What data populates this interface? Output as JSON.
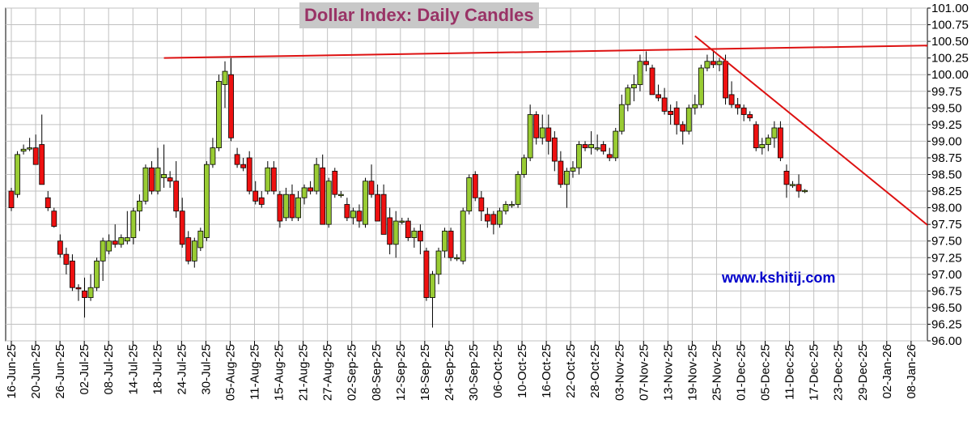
{
  "colors": {
    "up": "#99cc33",
    "down": "#ee1111",
    "trendline": "#dd1111",
    "title_text": "#993366",
    "title_bg": "#c8c8c8",
    "watermark": "#0000cc",
    "grid": "#c0c0c0"
  },
  "watermark": "www.kshitij.com",
  "chart_data": {
    "type": "candlestick",
    "title": "Dollar Index: Daily Candles",
    "y_axis": {
      "position": "right",
      "ylim": [
        96.0,
        101.0
      ],
      "ticks": [
        "96.00",
        "96.25",
        "96.50",
        "96.75",
        "97.00",
        "97.25",
        "97.50",
        "97.75",
        "98.00",
        "98.25",
        "98.50",
        "98.75",
        "99.00",
        "99.25",
        "99.50",
        "99.75",
        "100.00",
        "100.25",
        "100.50",
        "100.75",
        "101.00"
      ]
    },
    "x_axis": {
      "ticks": [
        "16-Jun-25",
        "20-Jun-25",
        "26-Jun-25",
        "02-Jul-25",
        "08-Jul-25",
        "14-Jul-25",
        "18-Jul-25",
        "24-Jul-25",
        "30-Jul-25",
        "05-Aug-25",
        "11-Aug-25",
        "15-Aug-25",
        "21-Aug-25",
        "27-Aug-25",
        "02-Sep-25",
        "08-Sep-25",
        "12-Sep-25",
        "18-Sep-25",
        "24-Sep-25",
        "30-Sep-25",
        "06-Oct-25",
        "10-Oct-25",
        "16-Oct-25",
        "22-Oct-25",
        "28-Oct-25",
        "03-Nov-25",
        "07-Nov-25",
        "13-Nov-25",
        "19-Nov-25",
        "25-Nov-25",
        "01-Dec-25",
        "05-Dec-25",
        "11-Dec-25",
        "17-Dec-25",
        "23-Dec-25",
        "29-Dec-25",
        "02-Jan-26",
        "08-Jan-26"
      ],
      "ticks_per_label_interval_days": 4
    },
    "grid": true,
    "candles": [
      {
        "d": 0,
        "o": 98.25,
        "h": 98.3,
        "l": 97.95,
        "c": 98.0
      },
      {
        "d": 1,
        "o": 98.2,
        "h": 98.85,
        "l": 98.15,
        "c": 98.8
      },
      {
        "d": 2,
        "o": 98.85,
        "h": 98.95,
        "l": 98.8,
        "c": 98.88
      },
      {
        "d": 3,
        "o": 98.9,
        "h": 99.05,
        "l": 98.85,
        "c": 98.9
      },
      {
        "d": 4,
        "o": 98.9,
        "h": 99.1,
        "l": 98.7,
        "c": 98.65
      },
      {
        "d": 5,
        "o": 98.95,
        "h": 99.4,
        "l": 98.35,
        "c": 98.35
      },
      {
        "d": 6,
        "o": 98.15,
        "h": 98.25,
        "l": 97.95,
        "c": 98.0
      },
      {
        "d": 7,
        "o": 97.95,
        "h": 98.0,
        "l": 97.7,
        "c": 97.72
      },
      {
        "d": 8,
        "o": 97.5,
        "h": 97.6,
        "l": 97.25,
        "c": 97.3
      },
      {
        "d": 9,
        "o": 97.3,
        "h": 97.4,
        "l": 97.0,
        "c": 97.15
      },
      {
        "d": 10,
        "o": 97.2,
        "h": 97.3,
        "l": 96.75,
        "c": 96.8
      },
      {
        "d": 11,
        "o": 96.8,
        "h": 96.85,
        "l": 96.6,
        "c": 96.78
      },
      {
        "d": 12,
        "o": 96.75,
        "h": 96.95,
        "l": 96.35,
        "c": 96.65
      },
      {
        "d": 13,
        "o": 96.65,
        "h": 97.0,
        "l": 96.6,
        "c": 96.8
      },
      {
        "d": 14,
        "o": 96.8,
        "h": 97.25,
        "l": 96.75,
        "c": 97.2
      },
      {
        "d": 15,
        "o": 97.2,
        "h": 97.55,
        "l": 96.9,
        "c": 97.5
      },
      {
        "d": 16,
        "o": 97.35,
        "h": 97.6,
        "l": 97.3,
        "c": 97.5
      },
      {
        "d": 17,
        "o": 97.5,
        "h": 97.75,
        "l": 97.4,
        "c": 97.45
      },
      {
        "d": 18,
        "o": 97.45,
        "h": 97.6,
        "l": 97.4,
        "c": 97.55
      },
      {
        "d": 19,
        "o": 97.5,
        "h": 97.95,
        "l": 97.45,
        "c": 97.55
      },
      {
        "d": 20,
        "o": 97.55,
        "h": 98.0,
        "l": 97.45,
        "c": 97.95
      },
      {
        "d": 21,
        "o": 97.95,
        "h": 98.2,
        "l": 97.65,
        "c": 98.1
      },
      {
        "d": 22,
        "o": 98.1,
        "h": 98.65,
        "l": 98.05,
        "c": 98.6
      },
      {
        "d": 23,
        "o": 98.6,
        "h": 98.7,
        "l": 98.2,
        "c": 98.25
      },
      {
        "d": 24,
        "o": 98.25,
        "h": 98.9,
        "l": 98.2,
        "c": 98.6
      },
      {
        "d": 25,
        "o": 98.45,
        "h": 98.95,
        "l": 98.3,
        "c": 98.5
      },
      {
        "d": 26,
        "o": 98.45,
        "h": 98.55,
        "l": 98.3,
        "c": 98.4
      },
      {
        "d": 27,
        "o": 98.4,
        "h": 98.7,
        "l": 97.85,
        "c": 97.95
      },
      {
        "d": 28,
        "o": 97.95,
        "h": 98.15,
        "l": 97.4,
        "c": 97.45
      },
      {
        "d": 29,
        "o": 97.55,
        "h": 97.65,
        "l": 97.15,
        "c": 97.2
      },
      {
        "d": 30,
        "o": 97.2,
        "h": 97.55,
        "l": 97.1,
        "c": 97.5
      },
      {
        "d": 31,
        "o": 97.4,
        "h": 97.7,
        "l": 97.35,
        "c": 97.65
      },
      {
        "d": 32,
        "o": 97.55,
        "h": 98.7,
        "l": 97.5,
        "c": 98.65
      },
      {
        "d": 33,
        "o": 98.65,
        "h": 99.05,
        "l": 98.6,
        "c": 98.9
      },
      {
        "d": 34,
        "o": 98.9,
        "h": 100.0,
        "l": 98.85,
        "c": 99.9
      },
      {
        "d": 35,
        "o": 99.85,
        "h": 100.2,
        "l": 99.5,
        "c": 100.05
      },
      {
        "d": 36,
        "o": 100.0,
        "h": 100.25,
        "l": 99.0,
        "c": 99.05
      },
      {
        "d": 37,
        "o": 98.8,
        "h": 98.9,
        "l": 98.6,
        "c": 98.65
      },
      {
        "d": 38,
        "o": 98.65,
        "h": 98.75,
        "l": 98.55,
        "c": 98.6
      },
      {
        "d": 39,
        "o": 98.75,
        "h": 98.85,
        "l": 98.2,
        "c": 98.25
      },
      {
        "d": 40,
        "o": 98.25,
        "h": 98.4,
        "l": 98.05,
        "c": 98.1
      },
      {
        "d": 41,
        "o": 98.15,
        "h": 98.25,
        "l": 98.0,
        "c": 98.05
      },
      {
        "d": 42,
        "o": 98.25,
        "h": 98.7,
        "l": 98.2,
        "c": 98.6
      },
      {
        "d": 43,
        "o": 98.6,
        "h": 98.7,
        "l": 98.2,
        "c": 98.25
      },
      {
        "d": 44,
        "o": 98.2,
        "h": 98.25,
        "l": 97.7,
        "c": 97.8
      },
      {
        "d": 45,
        "o": 97.85,
        "h": 98.3,
        "l": 97.8,
        "c": 98.2
      },
      {
        "d": 46,
        "o": 98.2,
        "h": 98.35,
        "l": 97.8,
        "c": 97.85
      },
      {
        "d": 47,
        "o": 97.85,
        "h": 98.25,
        "l": 97.8,
        "c": 98.15
      },
      {
        "d": 48,
        "o": 98.15,
        "h": 98.35,
        "l": 98.05,
        "c": 98.3
      },
      {
        "d": 49,
        "o": 98.3,
        "h": 98.4,
        "l": 98.2,
        "c": 98.25
      },
      {
        "d": 50,
        "o": 98.25,
        "h": 98.75,
        "l": 98.2,
        "c": 98.65
      },
      {
        "d": 51,
        "o": 98.6,
        "h": 98.8,
        "l": 97.75,
        "c": 97.75
      },
      {
        "d": 52,
        "o": 97.75,
        "h": 98.45,
        "l": 97.7,
        "c": 98.4
      },
      {
        "d": 53,
        "o": 98.55,
        "h": 98.6,
        "l": 98.15,
        "c": 98.2
      },
      {
        "d": 54,
        "o": 98.2,
        "h": 98.25,
        "l": 98.15,
        "c": 98.2
      },
      {
        "d": 55,
        "o": 98.05,
        "h": 98.15,
        "l": 97.8,
        "c": 97.85
      },
      {
        "d": 56,
        "o": 97.85,
        "h": 98.0,
        "l": 97.75,
        "c": 97.95
      },
      {
        "d": 57,
        "o": 97.95,
        "h": 98.05,
        "l": 97.7,
        "c": 97.8
      },
      {
        "d": 58,
        "o": 97.75,
        "h": 98.45,
        "l": 97.7,
        "c": 98.4
      },
      {
        "d": 59,
        "o": 98.4,
        "h": 98.65,
        "l": 98.15,
        "c": 98.2
      },
      {
        "d": 60,
        "o": 98.2,
        "h": 98.35,
        "l": 97.8,
        "c": 97.8
      },
      {
        "d": 61,
        "o": 98.2,
        "h": 98.35,
        "l": 97.6,
        "c": 97.6
      },
      {
        "d": 62,
        "o": 97.85,
        "h": 98.0,
        "l": 97.3,
        "c": 97.45
      },
      {
        "d": 63,
        "o": 97.45,
        "h": 97.95,
        "l": 97.25,
        "c": 97.8
      },
      {
        "d": 64,
        "o": 97.8,
        "h": 97.85,
        "l": 97.75,
        "c": 97.8
      },
      {
        "d": 65,
        "o": 97.8,
        "h": 97.85,
        "l": 97.5,
        "c": 97.55
      },
      {
        "d": 66,
        "o": 97.55,
        "h": 97.7,
        "l": 97.4,
        "c": 97.65
      },
      {
        "d": 67,
        "o": 97.65,
        "h": 97.75,
        "l": 97.3,
        "c": 97.5
      },
      {
        "d": 68,
        "o": 97.35,
        "h": 97.4,
        "l": 96.6,
        "c": 96.65
      },
      {
        "d": 69,
        "o": 96.65,
        "h": 97.05,
        "l": 96.2,
        "c": 97.0
      },
      {
        "d": 70,
        "o": 97.0,
        "h": 97.4,
        "l": 96.85,
        "c": 97.35
      },
      {
        "d": 71,
        "o": 97.35,
        "h": 97.7,
        "l": 97.25,
        "c": 97.65
      },
      {
        "d": 72,
        "o": 97.65,
        "h": 97.7,
        "l": 97.2,
        "c": 97.25
      },
      {
        "d": 73,
        "o": 97.25,
        "h": 97.3,
        "l": 97.2,
        "c": 97.25
      },
      {
        "d": 74,
        "o": 97.2,
        "h": 98.0,
        "l": 97.15,
        "c": 97.95
      },
      {
        "d": 75,
        "o": 97.95,
        "h": 98.5,
        "l": 97.9,
        "c": 98.45
      },
      {
        "d": 76,
        "o": 98.5,
        "h": 98.55,
        "l": 98.1,
        "c": 98.15
      },
      {
        "d": 77,
        "o": 98.15,
        "h": 98.25,
        "l": 97.8,
        "c": 97.95
      },
      {
        "d": 78,
        "o": 97.9,
        "h": 98.0,
        "l": 97.7,
        "c": 97.8
      },
      {
        "d": 79,
        "o": 97.9,
        "h": 97.95,
        "l": 97.6,
        "c": 97.75
      },
      {
        "d": 80,
        "o": 97.75,
        "h": 98.0,
        "l": 97.7,
        "c": 97.95
      },
      {
        "d": 81,
        "o": 97.95,
        "h": 98.1,
        "l": 97.9,
        "c": 98.05
      },
      {
        "d": 82,
        "o": 98.05,
        "h": 98.1,
        "l": 98.0,
        "c": 98.05
      },
      {
        "d": 83,
        "o": 98.05,
        "h": 98.55,
        "l": 98.0,
        "c": 98.5
      },
      {
        "d": 84,
        "o": 98.5,
        "h": 98.8,
        "l": 98.45,
        "c": 98.75
      },
      {
        "d": 85,
        "o": 98.75,
        "h": 99.55,
        "l": 98.7,
        "c": 99.4
      },
      {
        "d": 86,
        "o": 99.4,
        "h": 99.45,
        "l": 98.95,
        "c": 99.05
      },
      {
        "d": 87,
        "o": 99.05,
        "h": 99.4,
        "l": 98.95,
        "c": 99.2
      },
      {
        "d": 88,
        "o": 99.2,
        "h": 99.4,
        "l": 98.8,
        "c": 99.0
      },
      {
        "d": 89,
        "o": 99.05,
        "h": 99.15,
        "l": 98.55,
        "c": 98.7
      },
      {
        "d": 90,
        "o": 98.7,
        "h": 98.85,
        "l": 98.3,
        "c": 98.35
      },
      {
        "d": 91,
        "o": 98.35,
        "h": 98.6,
        "l": 98.0,
        "c": 98.55
      },
      {
        "d": 92,
        "o": 98.55,
        "h": 98.7,
        "l": 98.45,
        "c": 98.6
      },
      {
        "d": 93,
        "o": 98.6,
        "h": 99.0,
        "l": 98.5,
        "c": 98.95
      },
      {
        "d": 94,
        "o": 98.95,
        "h": 99.0,
        "l": 98.85,
        "c": 98.9
      },
      {
        "d": 95,
        "o": 98.9,
        "h": 99.15,
        "l": 98.8,
        "c": 98.95
      },
      {
        "d": 96,
        "o": 98.9,
        "h": 99.1,
        "l": 98.85,
        "c": 98.9
      },
      {
        "d": 97,
        "o": 98.95,
        "h": 99.0,
        "l": 98.8,
        "c": 98.85
      },
      {
        "d": 98,
        "o": 98.8,
        "h": 98.9,
        "l": 98.7,
        "c": 98.75
      },
      {
        "d": 99,
        "o": 98.75,
        "h": 99.2,
        "l": 98.7,
        "c": 99.15
      },
      {
        "d": 100,
        "o": 99.15,
        "h": 99.7,
        "l": 99.1,
        "c": 99.55
      },
      {
        "d": 101,
        "o": 99.55,
        "h": 99.85,
        "l": 99.45,
        "c": 99.8
      },
      {
        "d": 102,
        "o": 99.8,
        "h": 100.0,
        "l": 99.6,
        "c": 99.85
      },
      {
        "d": 103,
        "o": 99.85,
        "h": 100.3,
        "l": 99.75,
        "c": 100.2
      },
      {
        "d": 104,
        "o": 100.2,
        "h": 100.35,
        "l": 100.05,
        "c": 100.15
      },
      {
        "d": 105,
        "o": 100.1,
        "h": 100.15,
        "l": 99.7,
        "c": 99.7
      },
      {
        "d": 106,
        "o": 99.7,
        "h": 99.85,
        "l": 99.6,
        "c": 99.65
      },
      {
        "d": 107,
        "o": 99.65,
        "h": 99.8,
        "l": 99.4,
        "c": 99.45
      },
      {
        "d": 108,
        "o": 99.45,
        "h": 99.55,
        "l": 99.25,
        "c": 99.4
      },
      {
        "d": 109,
        "o": 99.5,
        "h": 99.6,
        "l": 99.1,
        "c": 99.25
      },
      {
        "d": 110,
        "o": 99.25,
        "h": 99.3,
        "l": 98.95,
        "c": 99.15
      },
      {
        "d": 111,
        "o": 99.15,
        "h": 99.55,
        "l": 99.1,
        "c": 99.5
      },
      {
        "d": 112,
        "o": 99.5,
        "h": 99.7,
        "l": 99.4,
        "c": 99.55
      },
      {
        "d": 113,
        "o": 99.55,
        "h": 100.15,
        "l": 99.5,
        "c": 100.1
      },
      {
        "d": 114,
        "o": 100.1,
        "h": 100.3,
        "l": 100.05,
        "c": 100.2
      },
      {
        "d": 115,
        "o": 100.2,
        "h": 100.35,
        "l": 100.1,
        "c": 100.15
      },
      {
        "d": 116,
        "o": 100.15,
        "h": 100.25,
        "l": 100.05,
        "c": 100.2
      },
      {
        "d": 117,
        "o": 100.2,
        "h": 100.3,
        "l": 99.55,
        "c": 99.65
      },
      {
        "d": 118,
        "o": 99.7,
        "h": 99.9,
        "l": 99.5,
        "c": 99.55
      },
      {
        "d": 119,
        "o": 99.55,
        "h": 99.65,
        "l": 99.4,
        "c": 99.5
      },
      {
        "d": 120,
        "o": 99.5,
        "h": 99.55,
        "l": 99.3,
        "c": 99.4
      },
      {
        "d": 121,
        "o": 99.4,
        "h": 99.45,
        "l": 99.3,
        "c": 99.35
      },
      {
        "d": 122,
        "o": 99.25,
        "h": 99.3,
        "l": 98.85,
        "c": 98.9
      },
      {
        "d": 123,
        "o": 98.9,
        "h": 99.05,
        "l": 98.8,
        "c": 98.95
      },
      {
        "d": 124,
        "o": 98.95,
        "h": 99.1,
        "l": 98.85,
        "c": 99.05
      },
      {
        "d": 125,
        "o": 99.05,
        "h": 99.3,
        "l": 98.9,
        "c": 99.2
      },
      {
        "d": 126,
        "o": 99.2,
        "h": 99.3,
        "l": 98.7,
        "c": 98.75
      },
      {
        "d": 127,
        "o": 98.55,
        "h": 98.65,
        "l": 98.15,
        "c": 98.35
      },
      {
        "d": 128,
        "o": 98.35,
        "h": 98.4,
        "l": 98.3,
        "c": 98.35
      },
      {
        "d": 129,
        "o": 98.35,
        "h": 98.5,
        "l": 98.15,
        "c": 98.25
      },
      {
        "d": 130,
        "o": 98.25,
        "h": 98.28,
        "l": 98.22,
        "c": 98.26
      }
    ],
    "annotations": [
      {
        "type": "trendline",
        "from": {
          "d": 25,
          "price": 100.25
        },
        "to": {
          "d": 158,
          "price": 100.45
        }
      },
      {
        "type": "trendline",
        "from": {
          "d": 112,
          "price": 100.58
        },
        "to": {
          "d": 158,
          "price": 97.15
        }
      }
    ]
  }
}
